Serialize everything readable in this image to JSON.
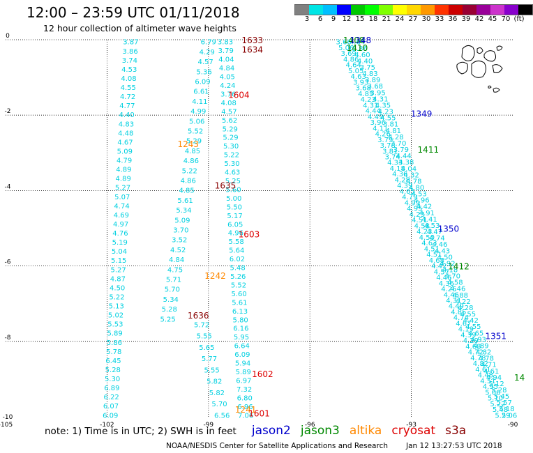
{
  "title": "12:00 – 23:59 UTC 01/11/2018",
  "subtitle": "12 hour collection of altimeter wave heights",
  "colorbar": {
    "colors": [
      "#808080",
      "#00e5e5",
      "#00bfff",
      "#0000ff",
      "#00c800",
      "#00ff00",
      "#7fff00",
      "#ffff00",
      "#ffd700",
      "#ff9900",
      "#ff3300",
      "#cc0000",
      "#990033",
      "#990099",
      "#cc33cc",
      "#8800cc",
      "#000000"
    ],
    "labels": [
      "3",
      "6",
      "9",
      "12",
      "15",
      "18",
      "21",
      "24",
      "27",
      "30",
      "33",
      "36",
      "39",
      "42",
      "45",
      "70",
      "(ft)"
    ]
  },
  "axes": {
    "x_ticks": [
      "-105",
      "-102",
      "-99",
      "-96",
      "-93",
      "-90"
    ],
    "y_ticks": [
      "0",
      "-2",
      "-4",
      "-6",
      "-8",
      "-10"
    ]
  },
  "note": "note:  1) Time is in UTC;  2) SWH is in feet",
  "satellites": [
    {
      "name": "jason2",
      "color": "#0000cc"
    },
    {
      "name": "jason3",
      "color": "#008800"
    },
    {
      "name": "altika",
      "color": "#ff8800"
    },
    {
      "name": "cryosat",
      "color": "#dd0000"
    },
    {
      "name": "s3a",
      "color": "#880000"
    }
  ],
  "time_labels": [
    {
      "text": "1633",
      "lon": -97.7,
      "lat": 0.0,
      "color": "#880000"
    },
    {
      "text": "1634",
      "lon": -97.7,
      "lat": -0.25,
      "color": "#880000"
    },
    {
      "text": "1604",
      "lon": -98.1,
      "lat": -1.45,
      "color": "#dd0000"
    },
    {
      "text": "1243",
      "lon": -99.6,
      "lat": -2.75,
      "color": "#ff8800"
    },
    {
      "text": "1635",
      "lon": -98.5,
      "lat": -3.85,
      "color": "#880000"
    },
    {
      "text": "1603",
      "lon": -97.8,
      "lat": -5.15,
      "color": "#dd0000"
    },
    {
      "text": "1242",
      "lon": -98.8,
      "lat": -6.25,
      "color": "#ff8800"
    },
    {
      "text": "1636",
      "lon": -99.3,
      "lat": -7.3,
      "color": "#880000"
    },
    {
      "text": "1602",
      "lon": -97.4,
      "lat": -8.85,
      "color": "#dd0000"
    },
    {
      "text": "1241",
      "lon": -97.9,
      "lat": -9.8,
      "color": "#ff8800"
    },
    {
      "text": "1601",
      "lon": -97.5,
      "lat": -9.9,
      "color": "#dd0000"
    },
    {
      "text": "1408",
      "lon": -94.7,
      "lat": 0.0,
      "color": "#008800"
    },
    {
      "text": "1348",
      "lon": -94.5,
      "lat": 0.0,
      "color": "#0000cc"
    },
    {
      "text": "1410",
      "lon": -94.6,
      "lat": -0.2,
      "color": "#008800"
    },
    {
      "text": "1349",
      "lon": -92.7,
      "lat": -1.95,
      "color": "#0000cc"
    },
    {
      "text": "1411",
      "lon": -92.5,
      "lat": -2.9,
      "color": "#008800"
    },
    {
      "text": "1350",
      "lon": -91.9,
      "lat": -5.0,
      "color": "#0000cc"
    },
    {
      "text": "1412",
      "lon": -91.6,
      "lat": -6.0,
      "color": "#008800"
    },
    {
      "text": "1351",
      "lon": -90.5,
      "lat": -7.85,
      "color": "#0000cc"
    },
    {
      "text": "14",
      "lon": -89.8,
      "lat": -8.95,
      "color": "#008800"
    }
  ],
  "wave_tracks": [
    {
      "name": "track-a",
      "color": "#00d0e0",
      "lon_start": -101.3,
      "lon_end": -101.9,
      "lat_start": -0.05,
      "lat_end": -9.95,
      "values": [
        "3.87",
        "3.86",
        "3.74",
        "4.53",
        "4.08",
        "4.55",
        "4.72",
        "4.77",
        "4.40",
        "4.83",
        "4.48",
        "4.67",
        "5.09",
        "4.79",
        "4.89",
        "4.89",
        "5.27",
        "5.07",
        "4.74",
        "4.69",
        "4.97",
        "4.76",
        "5.19",
        "5.04",
        "5.15",
        "5.27",
        "4.87",
        "4.50",
        "5.22",
        "5.13",
        "5.02",
        "5.53",
        "5.89",
        "5.86",
        "5.78",
        "6.45",
        "5.28",
        "5.30",
        "6.89",
        "6.22",
        "6.07",
        "6.09"
      ]
    },
    {
      "name": "track-b",
      "color": "#00d0e0",
      "lon_start": -99.0,
      "lon_end": -100.2,
      "lat_start": -0.05,
      "lat_end": -7.4,
      "values": [
        "6.79",
        "4.29",
        "4.57",
        "5.36",
        "6.09",
        "6.61",
        "4.11",
        "4.99",
        "5.06",
        "5.52",
        "5.29",
        "4.85",
        "4.86",
        "5.22",
        "4.86",
        "4.85",
        "5.61",
        "5.34",
        "5.09",
        "3.70",
        "3.52",
        "4.52",
        "4.84",
        "4.75",
        "5.71",
        "5.70",
        "5.34",
        "5.28",
        "5.25"
      ]
    },
    {
      "name": "track-c",
      "color": "#00d0e0",
      "lon_start": -99.2,
      "lon_end": -98.6,
      "lat_start": -7.55,
      "lat_end": -9.95,
      "values": [
        "5.72",
        "5.55",
        "5.65",
        "5.77",
        "5.55",
        "5.82",
        "5.82",
        "5.70",
        "6.56"
      ]
    },
    {
      "name": "track-d",
      "color": "#00d0e0",
      "lon_start": -98.5,
      "lon_end": -97.9,
      "lat_start": -0.05,
      "lat_end": -9.95,
      "values": [
        "3.83",
        "3.79",
        "4.04",
        "4.84",
        "4.05",
        "4.24",
        "3.76",
        "4.08",
        "4.57",
        "5.62",
        "5.29",
        "5.29",
        "5.30",
        "5.22",
        "5.30",
        "4.63",
        "5.25",
        "5.60",
        "5.00",
        "5.50",
        "5.17",
        "6.05",
        "4.96",
        "5.58",
        "5.64",
        "6.02",
        "5.48",
        "5.26",
        "5.52",
        "5.60",
        "5.61",
        "6.13",
        "5.80",
        "6.16",
        "5.95",
        "6.64",
        "6.09",
        "5.94",
        "5.89",
        "6.97",
        "7.32",
        "6.80",
        "6.96",
        "7.06"
      ]
    },
    {
      "name": "track-e",
      "color": "#00d0e0",
      "lon_start": -95.0,
      "lon_end": -90.3,
      "lat_start": -0.05,
      "lat_end": -9.95,
      "values": [
        "3.66",
        "5.06",
        "3.69",
        "4.86",
        "4.64",
        "5.05",
        "4.63",
        "3.93",
        "3.68",
        "4.85",
        "4.23",
        "4.31",
        "4.44",
        "4.49",
        "3.96",
        "4.11",
        "4.26",
        "3.79",
        "3.78",
        "3.81",
        "3.74",
        "4.33",
        "4.18",
        "4.36",
        "4.28",
        "4.39",
        "4.65",
        "4.79",
        "4.99",
        "4.95",
        "4.23",
        "4.51",
        "4.58",
        "4.23",
        "4.50",
        "4.63",
        "4.51",
        "4.51",
        "4.68",
        "4.42",
        "4.57",
        "4.46",
        "4.36",
        "4.26",
        "4.46",
        "4.31",
        "4.49",
        "4.85",
        "4.74",
        "4.67",
        "4.19",
        "4.39",
        "4.29",
        "4.68",
        "4.72",
        "4.78",
        "4.82",
        "4.61",
        "4.48",
        "4.51",
        "4.95",
        "5.06",
        "5.10",
        "5.22",
        "5.48",
        "5.29"
      ]
    },
    {
      "name": "track-f",
      "color": "#00d0e0",
      "lon_start": -94.6,
      "lon_end": -90.1,
      "lat_start": -0.05,
      "lat_end": -9.95,
      "values": [
        "4.64",
        "3.86",
        "4.60",
        "4.40",
        "3.75",
        "4.83",
        "3.89",
        "3.68",
        "3.95",
        "4.31",
        "4.35",
        "4.23",
        "4.55",
        "3.81",
        "4.81",
        "4.28",
        "3.70",
        "3.79",
        "4.44",
        "4.38",
        "4.04",
        "4.32",
        "4.78",
        "4.80",
        "4.53",
        "4.96",
        "4.42",
        "4.91",
        "4.41",
        "4.53",
        "4.47",
        "4.74",
        "4.46",
        "4.43",
        "4.50",
        "4.92",
        "4.18",
        "4.70",
        "4.58",
        "4.46",
        "4.88",
        "4.22",
        "4.28",
        "4.55",
        "4.42",
        "4.55",
        "4.65",
        "4.93",
        "4.89",
        "4.82",
        "4.78",
        "4.71",
        "4.61",
        "4.94",
        "5.12",
        "5.28",
        "5.45",
        "5.57",
        "5.18",
        "5.06"
      ]
    }
  ],
  "credit": "NOAA/NESDIS Center for Satellite Applications and Research",
  "timestamp": "Jan 12 13:27:53 UTC 2018"
}
